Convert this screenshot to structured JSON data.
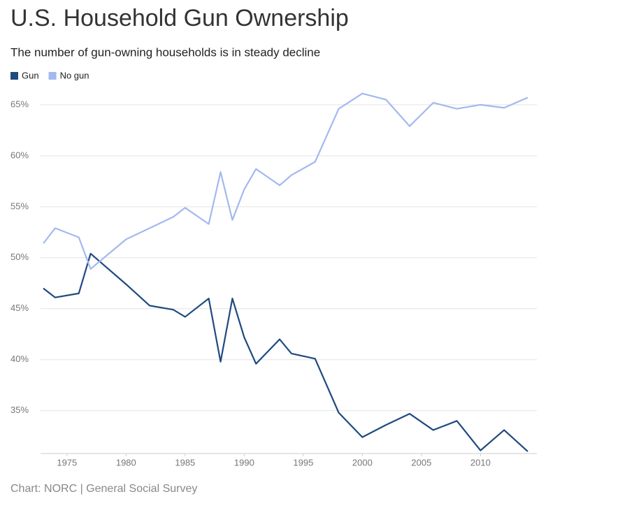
{
  "chart_data": {
    "type": "line",
    "title": "U.S. Household Gun Ownership",
    "subtitle": "The number of gun-owning households is in steady decline",
    "source": "Chart: NORC | General Social Survey",
    "x": [
      1973,
      1974,
      1976,
      1977,
      1980,
      1982,
      1984,
      1985,
      1987,
      1988,
      1989,
      1990,
      1991,
      1993,
      1994,
      1996,
      1998,
      2000,
      2002,
      2004,
      2006,
      2008,
      2010,
      2012,
      2014
    ],
    "series": [
      {
        "name": "Gun",
        "color": "#1f4a7e",
        "values": [
          47.0,
          46.1,
          46.5,
          50.4,
          47.4,
          45.3,
          44.9,
          44.2,
          46.0,
          39.8,
          46.0,
          42.2,
          39.6,
          42.0,
          40.6,
          40.1,
          34.8,
          32.4,
          33.6,
          34.7,
          33.1,
          34.0,
          31.1,
          33.1,
          31.0
        ]
      },
      {
        "name": "No gun",
        "color": "#a3b9ef",
        "values": [
          51.4,
          52.9,
          52.0,
          48.9,
          51.8,
          52.9,
          54.0,
          54.9,
          53.3,
          58.4,
          53.7,
          56.7,
          58.7,
          57.1,
          58.1,
          59.4,
          64.6,
          66.1,
          65.5,
          62.9,
          65.2,
          64.6,
          65.0,
          64.7,
          65.7
        ]
      }
    ],
    "xlim": [
      1973,
      2014
    ],
    "xticks": [
      1975,
      1980,
      1985,
      1990,
      1995,
      2000,
      2005,
      2010
    ],
    "ylim": [
      30.8,
      66.5
    ],
    "yticks": [
      {
        "value": 35,
        "label": "35%"
      },
      {
        "value": 40,
        "label": "40%"
      },
      {
        "value": 45,
        "label": "45%"
      },
      {
        "value": 50,
        "label": "50%"
      },
      {
        "value": 55,
        "label": "55%"
      },
      {
        "value": 60,
        "label": "60%"
      },
      {
        "value": 65,
        "label": "65%"
      }
    ],
    "grid": true
  }
}
